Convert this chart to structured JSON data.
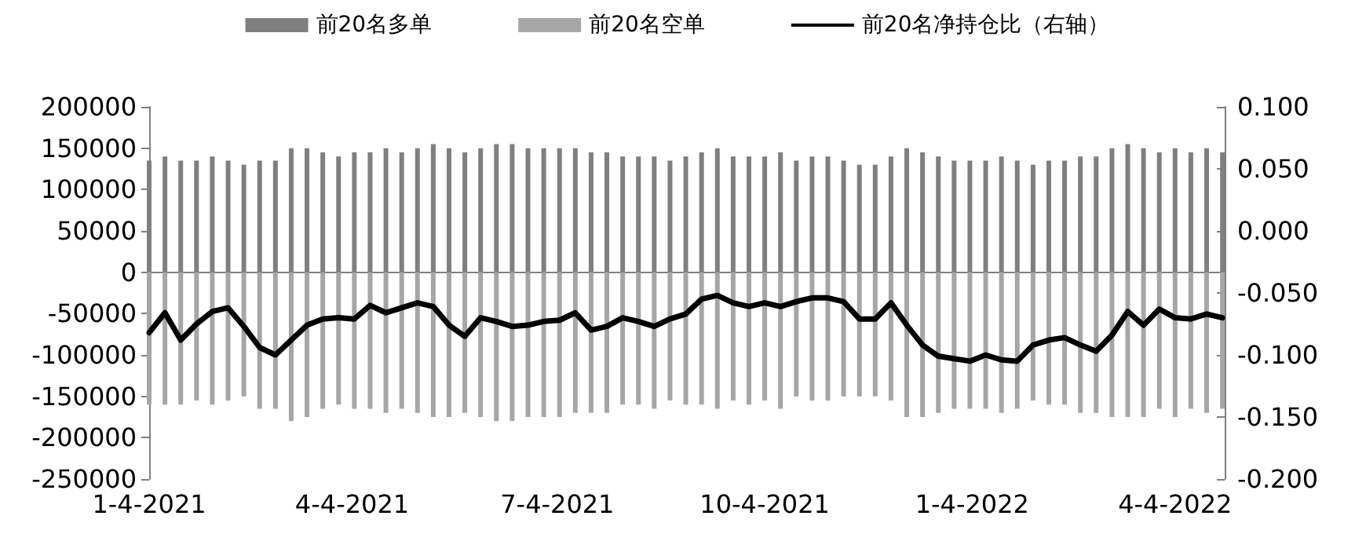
{
  "chart_data": {
    "type": "bar",
    "stacked": true,
    "legend": "top",
    "x": [
      "2021-01-04",
      "2021-01-11",
      "2021-01-18",
      "2021-01-25",
      "2021-02-01",
      "2021-02-08",
      "2021-02-15",
      "2021-02-22",
      "2021-03-01",
      "2021-03-08",
      "2021-03-15",
      "2021-03-22",
      "2021-03-29",
      "2021-04-05",
      "2021-04-12",
      "2021-04-19",
      "2021-04-26",
      "2021-05-03",
      "2021-05-10",
      "2021-05-17",
      "2021-05-24",
      "2021-05-31",
      "2021-06-07",
      "2021-06-14",
      "2021-06-21",
      "2021-06-28",
      "2021-07-05",
      "2021-07-12",
      "2021-07-19",
      "2021-07-26",
      "2021-08-02",
      "2021-08-09",
      "2021-08-16",
      "2021-08-23",
      "2021-08-30",
      "2021-09-06",
      "2021-09-13",
      "2021-09-20",
      "2021-09-27",
      "2021-10-04",
      "2021-10-11",
      "2021-10-18",
      "2021-10-25",
      "2021-11-01",
      "2021-11-08",
      "2021-11-15",
      "2021-11-22",
      "2021-11-29",
      "2021-12-06",
      "2021-12-13",
      "2021-12-20",
      "2021-12-27",
      "2022-01-03",
      "2022-01-10",
      "2022-01-17",
      "2022-01-24",
      "2022-01-31",
      "2022-02-07",
      "2022-02-14",
      "2022-02-21",
      "2022-02-28",
      "2022-03-07",
      "2022-03-14",
      "2022-03-21",
      "2022-03-28",
      "2022-04-04",
      "2022-04-11",
      "2022-04-18",
      "2022-04-25"
    ],
    "xlim": [
      "2021-01-04",
      "2022-04-26"
    ],
    "xticks": [
      {
        "value": "2021-01-04",
        "label": "1-4-2021"
      },
      {
        "value": "2021-04-04",
        "label": "4-4-2021"
      },
      {
        "value": "2021-07-04",
        "label": "7-4-2021"
      },
      {
        "value": "2021-10-04",
        "label": "10-4-2021"
      },
      {
        "value": "2022-01-04",
        "label": "1-4-2022"
      },
      {
        "value": "2022-04-04",
        "label": "4-4-2022"
      }
    ],
    "ylim": [
      -250000,
      200000
    ],
    "yticks": [
      -250000,
      -200000,
      -150000,
      -100000,
      -50000,
      0,
      50000,
      100000,
      150000,
      200000
    ],
    "y2lim": [
      -0.2,
      0.1
    ],
    "y2ticks": [
      {
        "value": -0.2,
        "label": "-0.200"
      },
      {
        "value": -0.15,
        "label": "-0.150"
      },
      {
        "value": -0.1,
        "label": "-0.100"
      },
      {
        "value": -0.05,
        "label": "-0.050"
      },
      {
        "value": 0,
        "label": "0.000"
      },
      {
        "value": 0.05,
        "label": "0.050"
      },
      {
        "value": 0.1,
        "label": "0.100"
      }
    ],
    "series": [
      {
        "name": "前20名多单",
        "color": "#7f7f7f",
        "values": [
          135000,
          140000,
          135000,
          135000,
          140000,
          135000,
          130000,
          135000,
          135000,
          150000,
          150000,
          145000,
          140000,
          145000,
          145000,
          150000,
          145000,
          150000,
          155000,
          150000,
          145000,
          150000,
          155000,
          155000,
          150000,
          150000,
          150000,
          150000,
          145000,
          145000,
          140000,
          140000,
          140000,
          135000,
          140000,
          145000,
          150000,
          140000,
          140000,
          140000,
          145000,
          135000,
          140000,
          140000,
          135000,
          130000,
          130000,
          140000,
          150000,
          145000,
          140000,
          135000,
          135000,
          135000,
          140000,
          135000,
          130000,
          135000,
          135000,
          140000,
          140000,
          150000,
          155000,
          150000,
          145000,
          150000,
          145000,
          150000,
          145000
        ]
      },
      {
        "name": "前20名空单",
        "color": "#a6a6a6",
        "values": [
          -160000,
          -160000,
          -160000,
          -155000,
          -160000,
          -155000,
          -150000,
          -165000,
          -165000,
          -180000,
          -175000,
          -165000,
          -160000,
          -165000,
          -165000,
          -170000,
          -165000,
          -170000,
          -175000,
          -175000,
          -170000,
          -175000,
          -180000,
          -180000,
          -175000,
          -175000,
          -175000,
          -170000,
          -170000,
          -170000,
          -160000,
          -160000,
          -165000,
          -155000,
          -160000,
          -160000,
          -165000,
          -155000,
          -160000,
          -155000,
          -165000,
          -150000,
          -155000,
          -155000,
          -150000,
          -150000,
          -150000,
          -155000,
          -175000,
          -175000,
          -170000,
          -165000,
          -165000,
          -165000,
          -170000,
          -165000,
          -155000,
          -160000,
          -160000,
          -170000,
          -170000,
          -175000,
          -175000,
          -175000,
          -165000,
          -175000,
          -165000,
          -170000,
          -165000
        ]
      },
      {
        "name": "前20名净持仓比（右轴）",
        "type": "line",
        "axis": "y2",
        "color": "#000000",
        "values": [
          -0.082,
          -0.066,
          -0.088,
          -0.075,
          -0.065,
          -0.062,
          -0.077,
          -0.094,
          -0.1,
          -0.088,
          -0.076,
          -0.071,
          -0.07,
          -0.071,
          -0.06,
          -0.066,
          -0.062,
          -0.058,
          -0.061,
          -0.076,
          -0.085,
          -0.07,
          -0.073,
          -0.077,
          -0.076,
          -0.073,
          -0.072,
          -0.066,
          -0.08,
          -0.077,
          -0.07,
          -0.073,
          -0.077,
          -0.071,
          -0.067,
          -0.055,
          -0.052,
          -0.058,
          -0.061,
          -0.058,
          -0.061,
          -0.057,
          -0.054,
          -0.054,
          -0.057,
          -0.071,
          -0.071,
          -0.058,
          -0.076,
          -0.092,
          -0.101,
          -0.103,
          -0.105,
          -0.1,
          -0.104,
          -0.105,
          -0.092,
          -0.088,
          -0.086,
          -0.092,
          -0.097,
          -0.084,
          -0.065,
          -0.076,
          -0.063,
          -0.07,
          -0.071,
          -0.067,
          -0.07
        ]
      }
    ]
  }
}
